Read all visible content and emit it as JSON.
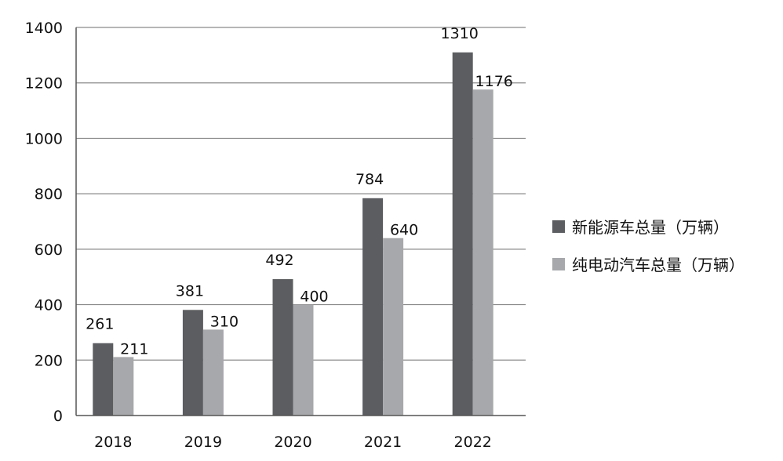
{
  "chart_data": {
    "type": "bar",
    "categories": [
      "2018",
      "2019",
      "2020",
      "2021",
      "2022"
    ],
    "series": [
      {
        "name": "新能源车总量（万辆）",
        "values": [
          261,
          381,
          492,
          784,
          1310
        ],
        "color": "#5b5d60"
      },
      {
        "name": "纯电动汽车总量（万辆）",
        "values": [
          211,
          310,
          400,
          640,
          1176
        ],
        "color": "#a7a8ab"
      }
    ],
    "data_labels": [
      [
        "261",
        "381",
        "492",
        "784",
        "1310"
      ],
      [
        "211",
        "310",
        "400",
        "640",
        "1176"
      ]
    ],
    "yticks": [
      "0",
      "200",
      "400",
      "600",
      "800",
      "1000",
      "1200",
      "1400"
    ],
    "ylim": [
      0,
      1400
    ],
    "grid": true,
    "legend_position": "right",
    "title": "",
    "xlabel": "",
    "ylabel": ""
  }
}
